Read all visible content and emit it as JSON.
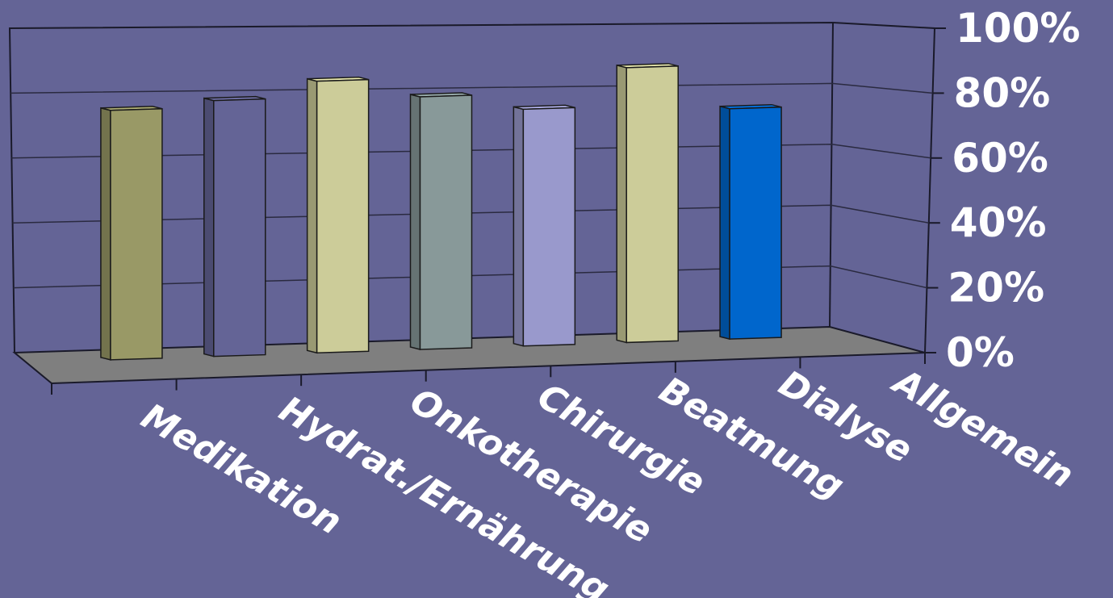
{
  "chart_data": {
    "type": "bar",
    "title": "",
    "xlabel": "",
    "ylabel": "",
    "categories": [
      "Medikation",
      "Hydrat./Ernährung",
      "Onkotherapie",
      "Chirurgie",
      "Beatmung",
      "Dialyse",
      "Allgemein"
    ],
    "values": [
      82,
      84,
      89,
      83,
      78,
      90,
      76
    ],
    "colors": [
      "#999966",
      "#646496",
      "#cccc99",
      "#889999",
      "#9999cc",
      "#cccc99",
      "#0066cc"
    ],
    "ylim": [
      0,
      100
    ],
    "yticks": [
      "0%",
      "20%",
      "40%",
      "60%",
      "80%",
      "100%"
    ],
    "grid": true,
    "style": "3d-column"
  }
}
